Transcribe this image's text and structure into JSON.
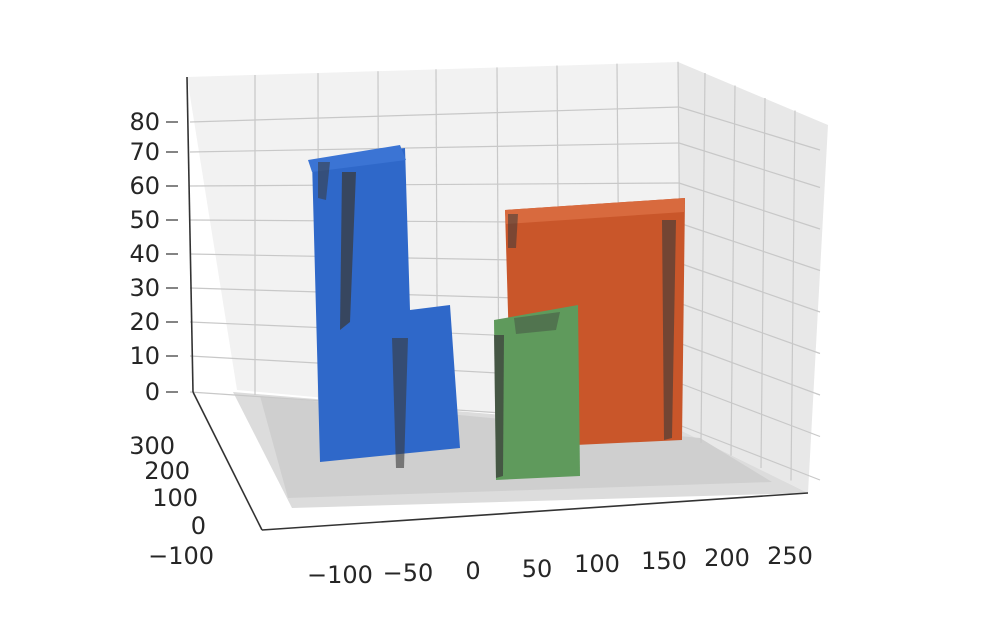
{
  "chart_data": {
    "type": "3d-surface",
    "title": "",
    "xlabel": "",
    "ylabel": "",
    "zlabel": "",
    "x_ticks": [
      "−100",
      "−50",
      "0",
      "50",
      "100",
      "150",
      "200",
      "250"
    ],
    "y_ticks": [
      "−100",
      "0",
      "100",
      "200",
      "300"
    ],
    "z_ticks": [
      "0",
      "10",
      "20",
      "30",
      "40",
      "50",
      "60",
      "70",
      "80"
    ],
    "xlim": [
      -150,
      250
    ],
    "ylim": [
      -150,
      350
    ],
    "zlim": [
      0,
      80
    ],
    "grid": true,
    "floor_color": "#cfcfcf",
    "objects": [
      {
        "shape": "chair",
        "color": "#2f68c9",
        "x_range": [
          -95,
          -45
        ],
        "seat_height": 25,
        "back_height": 70
      },
      {
        "shape": "block",
        "color": "#c9562a",
        "x_range": [
          55,
          160
        ],
        "height": 53
      },
      {
        "shape": "block",
        "color": "#5f9a5c",
        "x_range": [
          25,
          80
        ],
        "height": 24
      }
    ]
  }
}
